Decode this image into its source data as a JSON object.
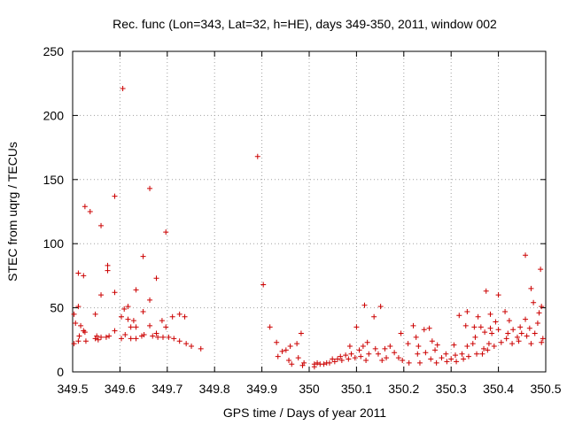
{
  "chart_data": {
    "type": "scatter",
    "title": "Rec. func (Lon=343, Lat=32, h=HE), days 349-350, 2011, window 002",
    "xlabel": "GPS time / Days of year 2011",
    "ylabel": "STEC from uqrg / TECUs",
    "xlim": [
      349.5,
      350.5
    ],
    "ylim": [
      0,
      250
    ],
    "x_ticks": [
      "349.5",
      "349.6",
      "349.7",
      "349.8",
      "349.9",
      "350",
      "350.1",
      "350.2",
      "350.3",
      "350.4",
      "350.5"
    ],
    "y_ticks": [
      "0",
      "50",
      "100",
      "150",
      "200",
      "250"
    ],
    "grid": true,
    "marker": "plus",
    "color": "#cc0000",
    "points": [
      [
        349.503,
        22
      ],
      [
        349.503,
        45
      ],
      [
        349.506,
        38
      ],
      [
        349.512,
        24
      ],
      [
        349.512,
        51
      ],
      [
        349.512,
        77
      ],
      [
        349.514,
        28
      ],
      [
        349.517,
        36
      ],
      [
        349.523,
        75
      ],
      [
        349.523,
        32
      ],
      [
        349.526,
        31
      ],
      [
        349.526,
        129
      ],
      [
        349.528,
        24
      ],
      [
        349.537,
        125
      ],
      [
        349.548,
        45
      ],
      [
        349.548,
        26
      ],
      [
        349.551,
        28
      ],
      [
        349.554,
        25
      ],
      [
        349.56,
        114
      ],
      [
        349.56,
        60
      ],
      [
        349.56,
        27
      ],
      [
        349.571,
        27
      ],
      [
        349.574,
        83
      ],
      [
        349.574,
        79
      ],
      [
        349.577,
        28
      ],
      [
        349.589,
        137
      ],
      [
        349.589,
        62
      ],
      [
        349.589,
        32
      ],
      [
        349.603,
        43
      ],
      [
        349.603,
        26
      ],
      [
        349.606,
        221
      ],
      [
        349.609,
        49
      ],
      [
        349.611,
        29
      ],
      [
        349.617,
        41
      ],
      [
        349.617,
        51
      ],
      [
        349.623,
        35
      ],
      [
        349.623,
        26
      ],
      [
        349.629,
        40
      ],
      [
        349.634,
        64
      ],
      [
        349.634,
        35
      ],
      [
        349.634,
        26
      ],
      [
        349.646,
        28
      ],
      [
        349.649,
        47
      ],
      [
        349.649,
        90
      ],
      [
        349.651,
        29
      ],
      [
        349.663,
        143
      ],
      [
        349.663,
        56
      ],
      [
        349.663,
        36
      ],
      [
        349.669,
        28
      ],
      [
        349.677,
        73
      ],
      [
        349.677,
        30
      ],
      [
        349.68,
        27
      ],
      [
        349.689,
        40
      ],
      [
        349.691,
        27
      ],
      [
        349.697,
        109
      ],
      [
        349.697,
        35
      ],
      [
        349.703,
        27
      ],
      [
        349.711,
        43
      ],
      [
        349.714,
        26
      ],
      [
        349.726,
        45
      ],
      [
        349.726,
        24
      ],
      [
        349.737,
        43
      ],
      [
        349.74,
        22
      ],
      [
        349.751,
        20
      ],
      [
        349.771,
        18
      ],
      [
        349.891,
        168
      ],
      [
        349.903,
        68
      ],
      [
        349.917,
        35
      ],
      [
        349.931,
        23
      ],
      [
        349.934,
        12
      ],
      [
        349.943,
        16
      ],
      [
        349.951,
        17
      ],
      [
        349.957,
        9
      ],
      [
        349.96,
        20
      ],
      [
        349.963,
        6
      ],
      [
        349.974,
        22
      ],
      [
        349.977,
        11
      ],
      [
        349.983,
        30
      ],
      [
        349.986,
        5
      ],
      [
        349.989,
        7
      ],
      [
        350.011,
        6
      ],
      [
        350.011,
        4
      ],
      [
        350.017,
        7
      ],
      [
        350.023,
        6
      ],
      [
        350.031,
        6
      ],
      [
        350.037,
        7
      ],
      [
        350.043,
        7
      ],
      [
        350.049,
        10
      ],
      [
        350.054,
        8
      ],
      [
        350.06,
        10
      ],
      [
        350.066,
        12
      ],
      [
        350.069,
        9
      ],
      [
        350.077,
        13
      ],
      [
        350.083,
        10
      ],
      [
        350.086,
        20
      ],
      [
        350.089,
        14
      ],
      [
        350.097,
        11
      ],
      [
        350.1,
        35
      ],
      [
        350.106,
        17
      ],
      [
        350.109,
        12
      ],
      [
        350.114,
        20
      ],
      [
        350.117,
        52
      ],
      [
        350.12,
        9
      ],
      [
        350.123,
        23
      ],
      [
        350.126,
        14
      ],
      [
        350.137,
        43
      ],
      [
        350.14,
        18
      ],
      [
        350.146,
        14
      ],
      [
        350.151,
        51
      ],
      [
        350.154,
        9
      ],
      [
        350.16,
        18
      ],
      [
        350.163,
        11
      ],
      [
        350.171,
        20
      ],
      [
        350.18,
        15
      ],
      [
        350.189,
        11
      ],
      [
        350.194,
        30
      ],
      [
        350.197,
        9
      ],
      [
        350.209,
        22
      ],
      [
        350.211,
        7
      ],
      [
        350.22,
        36
      ],
      [
        350.226,
        27
      ],
      [
        350.229,
        14
      ],
      [
        350.231,
        20
      ],
      [
        350.234,
        7
      ],
      [
        350.243,
        33
      ],
      [
        350.246,
        15
      ],
      [
        350.254,
        34
      ],
      [
        350.257,
        10
      ],
      [
        350.26,
        24
      ],
      [
        350.266,
        17
      ],
      [
        350.269,
        7
      ],
      [
        350.271,
        21
      ],
      [
        350.28,
        11
      ],
      [
        350.289,
        14
      ],
      [
        350.291,
        8
      ],
      [
        350.3,
        10
      ],
      [
        350.306,
        21
      ],
      [
        350.309,
        13
      ],
      [
        350.311,
        8
      ],
      [
        350.317,
        44
      ],
      [
        350.323,
        14
      ],
      [
        350.326,
        10
      ],
      [
        350.331,
        36
      ],
      [
        350.334,
        47
      ],
      [
        350.334,
        20
      ],
      [
        350.337,
        12
      ],
      [
        350.346,
        22
      ],
      [
        350.349,
        35
      ],
      [
        350.351,
        27
      ],
      [
        350.354,
        14
      ],
      [
        350.357,
        43
      ],
      [
        350.363,
        35
      ],
      [
        350.366,
        14
      ],
      [
        350.369,
        18
      ],
      [
        350.371,
        31
      ],
      [
        350.374,
        63
      ],
      [
        350.377,
        17
      ],
      [
        350.38,
        22
      ],
      [
        350.383,
        34
      ],
      [
        350.383,
        45
      ],
      [
        350.386,
        30
      ],
      [
        350.391,
        20
      ],
      [
        350.394,
        39
      ],
      [
        350.4,
        60
      ],
      [
        350.4,
        33
      ],
      [
        350.406,
        23
      ],
      [
        350.414,
        47
      ],
      [
        350.417,
        26
      ],
      [
        350.42,
        30
      ],
      [
        350.423,
        40
      ],
      [
        350.429,
        22
      ],
      [
        350.431,
        33
      ],
      [
        350.44,
        27
      ],
      [
        350.443,
        24
      ],
      [
        350.446,
        35
      ],
      [
        350.449,
        30
      ],
      [
        350.457,
        91
      ],
      [
        350.457,
        41
      ],
      [
        350.46,
        28
      ],
      [
        350.466,
        34
      ],
      [
        350.469,
        65
      ],
      [
        350.469,
        22
      ],
      [
        350.474,
        54
      ],
      [
        350.477,
        30
      ],
      [
        350.483,
        38
      ],
      [
        350.486,
        46
      ],
      [
        350.489,
        80
      ],
      [
        350.491,
        51
      ],
      [
        350.491,
        23
      ],
      [
        350.494,
        26
      ]
    ]
  }
}
